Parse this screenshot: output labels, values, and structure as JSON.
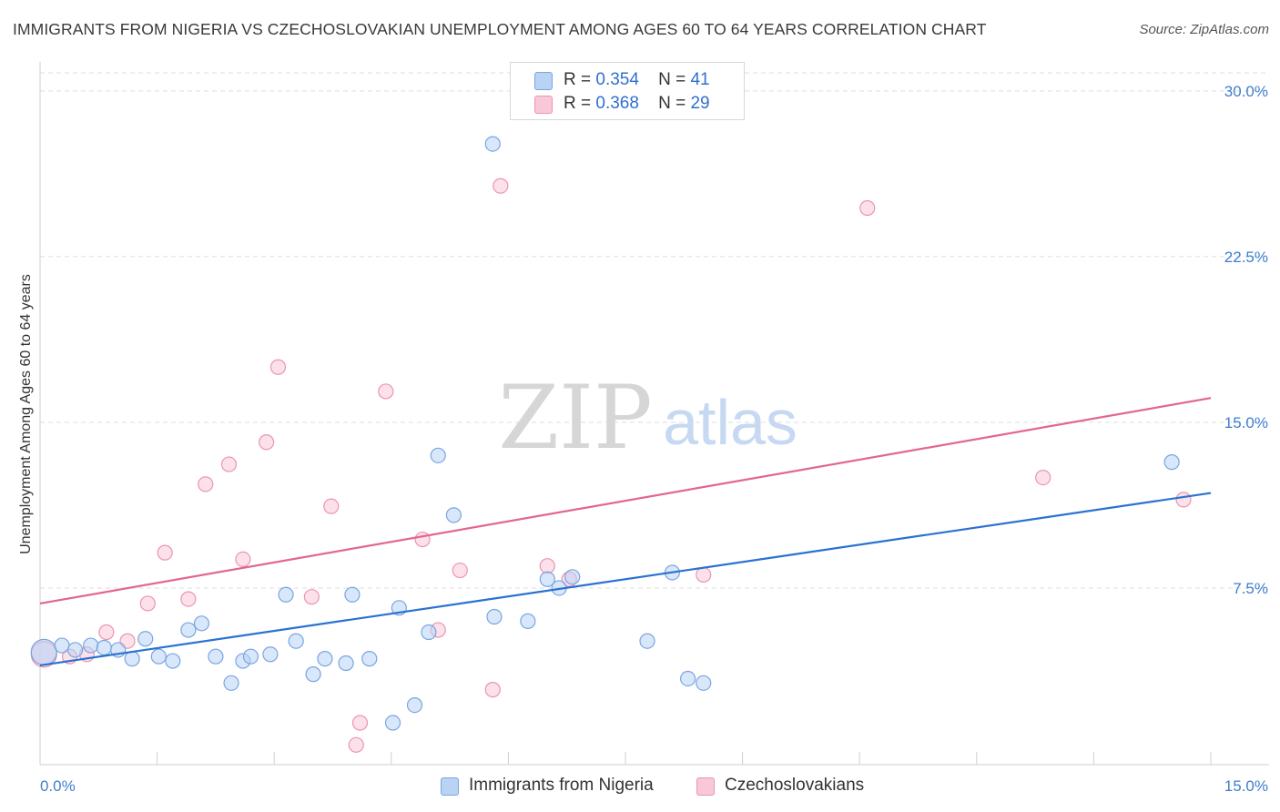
{
  "title": "IMMIGRANTS FROM NIGERIA VS CZECHOSLOVAKIAN UNEMPLOYMENT AMONG AGES 60 TO 64 YEARS CORRELATION CHART",
  "source": "Source: ZipAtlas.com",
  "watermark": {
    "zip": "ZIP",
    "atlas": "atlas"
  },
  "legend": {
    "r_label": "R =",
    "n_label": "N =",
    "nigeria": {
      "r": "0.354",
      "n": "41"
    },
    "czech": {
      "r": "0.368",
      "n": "29"
    }
  },
  "bottom_legend": {
    "nigeria": "Immigrants from Nigeria",
    "czech": "Czechoslovakians"
  },
  "chart_data": {
    "type": "scatter",
    "title": "IMMIGRANTS FROM NIGERIA VS CZECHOSLOVAKIAN UNEMPLOYMENT AMONG AGES 60 TO 64 YEARS CORRELATION CHART",
    "xlabel": "",
    "ylabel": "Unemployment Among Ages 60 to 64 years",
    "xlim": [
      0,
      15
    ],
    "ylim": [
      0,
      30.9
    ],
    "x_tick_labels": [
      "0.0%",
      "15.0%"
    ],
    "y_ticks": [
      7.5,
      15.0,
      22.5,
      30.0
    ],
    "y_tick_labels": [
      "7.5%",
      "15.0%",
      "22.5%",
      "30.0%"
    ],
    "colors": {
      "nigeria_fill": "#b9d3f5",
      "nigeria_stroke": "#7aa5e0",
      "nigeria_line": "#2a72d0",
      "czech_fill": "#f9c8d8",
      "czech_stroke": "#eb94b2",
      "czech_line": "#e26692",
      "grid": "#dddddd",
      "axis_text": "#3f7dd0"
    },
    "series": [
      {
        "name": "Immigrants from Nigeria",
        "r": 0.354,
        "n": 41,
        "trend": {
          "x": [
            0.0,
            15.0
          ],
          "y": [
            4.0,
            11.8
          ]
        },
        "points": [
          {
            "x": 0.05,
            "y": 4.6,
            "big": true
          },
          {
            "x": 0.28,
            "y": 4.9
          },
          {
            "x": 0.45,
            "y": 4.7
          },
          {
            "x": 0.65,
            "y": 4.9
          },
          {
            "x": 0.82,
            "y": 4.8
          },
          {
            "x": 1.0,
            "y": 4.7
          },
          {
            "x": 1.18,
            "y": 4.3
          },
          {
            "x": 1.35,
            "y": 5.2
          },
          {
            "x": 1.52,
            "y": 4.4
          },
          {
            "x": 1.7,
            "y": 4.2
          },
          {
            "x": 1.9,
            "y": 5.6
          },
          {
            "x": 2.07,
            "y": 5.9
          },
          {
            "x": 2.25,
            "y": 4.4
          },
          {
            "x": 2.45,
            "y": 3.2
          },
          {
            "x": 2.6,
            "y": 4.2
          },
          {
            "x": 2.7,
            "y": 4.4
          },
          {
            "x": 2.95,
            "y": 4.5
          },
          {
            "x": 3.15,
            "y": 7.2
          },
          {
            "x": 3.28,
            "y": 5.1
          },
          {
            "x": 3.5,
            "y": 3.6
          },
          {
            "x": 3.65,
            "y": 4.3
          },
          {
            "x": 3.92,
            "y": 4.1
          },
          {
            "x": 4.0,
            "y": 7.2
          },
          {
            "x": 4.22,
            "y": 4.3
          },
          {
            "x": 4.52,
            "y": 1.4
          },
          {
            "x": 4.6,
            "y": 6.6
          },
          {
            "x": 4.8,
            "y": 2.2
          },
          {
            "x": 4.98,
            "y": 5.5
          },
          {
            "x": 5.1,
            "y": 13.5
          },
          {
            "x": 5.3,
            "y": 10.8
          },
          {
            "x": 5.8,
            "y": 27.6
          },
          {
            "x": 5.82,
            "y": 6.2
          },
          {
            "x": 6.25,
            "y": 6.0
          },
          {
            "x": 6.5,
            "y": 7.9
          },
          {
            "x": 6.65,
            "y": 7.5
          },
          {
            "x": 6.82,
            "y": 8.0
          },
          {
            "x": 7.78,
            "y": 5.1
          },
          {
            "x": 8.1,
            "y": 8.2
          },
          {
            "x": 8.3,
            "y": 3.4
          },
          {
            "x": 8.5,
            "y": 3.2
          },
          {
            "x": 14.5,
            "y": 13.2
          }
        ]
      },
      {
        "name": "Czechoslovakians",
        "r": 0.368,
        "n": 29,
        "trend": {
          "x": [
            0.0,
            15.0
          ],
          "y": [
            6.8,
            16.1
          ]
        },
        "points": [
          {
            "x": 0.05,
            "y": 4.5,
            "big": true
          },
          {
            "x": 0.38,
            "y": 4.4
          },
          {
            "x": 0.6,
            "y": 4.5
          },
          {
            "x": 0.85,
            "y": 5.5
          },
          {
            "x": 1.12,
            "y": 5.1
          },
          {
            "x": 1.38,
            "y": 6.8
          },
          {
            "x": 1.6,
            "y": 9.1
          },
          {
            "x": 1.9,
            "y": 7.0
          },
          {
            "x": 2.12,
            "y": 12.2
          },
          {
            "x": 2.42,
            "y": 13.1
          },
          {
            "x": 2.6,
            "y": 8.8
          },
          {
            "x": 2.9,
            "y": 14.1
          },
          {
            "x": 3.05,
            "y": 17.5
          },
          {
            "x": 3.48,
            "y": 7.1
          },
          {
            "x": 3.73,
            "y": 11.2
          },
          {
            "x": 4.05,
            "y": 0.4
          },
          {
            "x": 4.1,
            "y": 1.4
          },
          {
            "x": 4.43,
            "y": 16.4
          },
          {
            "x": 4.9,
            "y": 9.7
          },
          {
            "x": 5.1,
            "y": 5.6
          },
          {
            "x": 5.38,
            "y": 8.3
          },
          {
            "x": 5.8,
            "y": 2.9
          },
          {
            "x": 5.9,
            "y": 25.7
          },
          {
            "x": 6.5,
            "y": 8.5
          },
          {
            "x": 6.78,
            "y": 7.9
          },
          {
            "x": 8.5,
            "y": 8.1
          },
          {
            "x": 10.6,
            "y": 24.7
          },
          {
            "x": 12.85,
            "y": 12.5
          },
          {
            "x": 14.65,
            "y": 11.5
          }
        ]
      }
    ]
  }
}
